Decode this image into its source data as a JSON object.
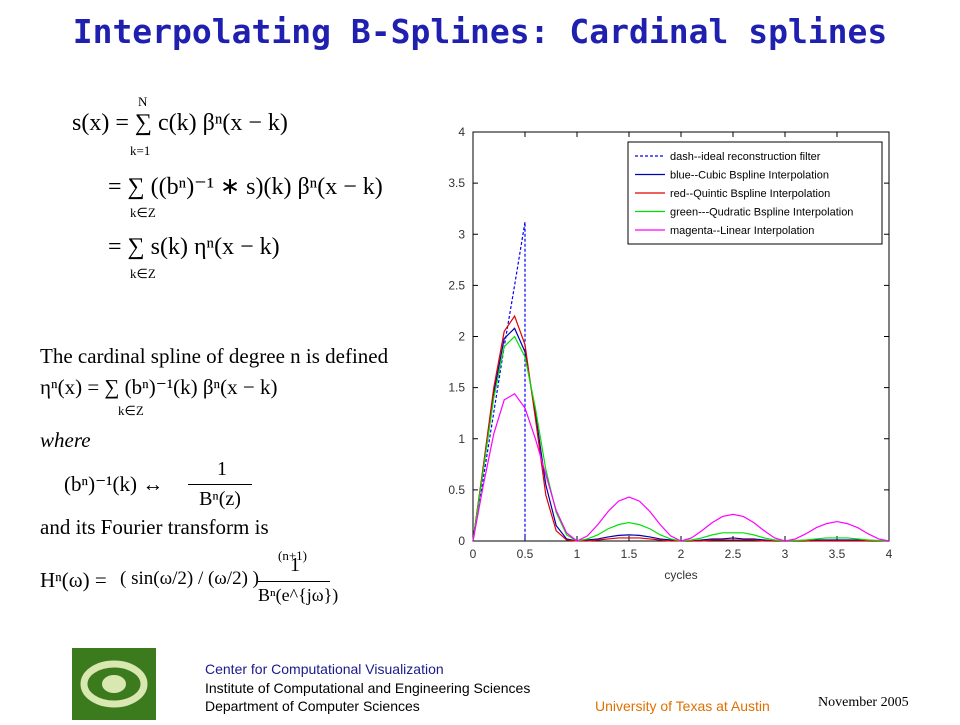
{
  "title": "Interpolating B-Splines: Cardinal splines",
  "equations": {
    "eq1": {
      "main": "s(x) = ∑ c(k) βⁿ(x − k)",
      "upper": "N",
      "lower": "k=1"
    },
    "eq2": {
      "main": "= ∑ ((bⁿ)⁻¹ ∗ s)(k) βⁿ(x − k)",
      "lower": "k∈Z"
    },
    "eq3": {
      "main": "= ∑ s(k) ηⁿ(x − k)",
      "lower": "k∈Z"
    },
    "definition": "The cardinal spline of degree n is defined",
    "eq4": {
      "main": "ηⁿ(x) = ∑ (bⁿ)⁻¹(k) βⁿ(x − k)",
      "lower": "k∈Z"
    },
    "where": "where",
    "eq5": {
      "left": "(bⁿ)⁻¹(k) ↔",
      "numerator": "1",
      "denominator": "Bⁿ(z)"
    },
    "fourier": "and its Fourier transform is",
    "eq6": {
      "left": "Hⁿ(ω) =",
      "paren": "( sin(ω/2) / (ω/2) )",
      "power": "(n+1)",
      "numerator": "1",
      "denominator": "Bⁿ(e^{jω})"
    }
  },
  "chart_data": {
    "type": "line",
    "xlabel": "cycles",
    "xlim": [
      0,
      4
    ],
    "ylim": [
      0,
      4
    ],
    "xticks": [
      0,
      0.5,
      1,
      1.5,
      2,
      2.5,
      3,
      3.5,
      4
    ],
    "yticks": [
      0,
      0.5,
      1,
      1.5,
      2,
      2.5,
      3,
      3.5,
      4
    ],
    "legend": "upper right",
    "x": [
      0,
      0.1,
      0.2,
      0.3,
      0.4,
      0.5,
      0.6,
      0.7,
      0.8,
      0.9,
      1,
      1.1,
      1.2,
      1.3,
      1.4,
      1.5,
      1.6,
      1.7,
      1.8,
      1.9,
      2,
      2.1,
      2.2,
      2.3,
      2.4,
      2.5,
      2.6,
      2.7,
      2.8,
      2.9,
      3,
      3.1,
      3.2,
      3.3,
      3.4,
      3.5,
      3.6,
      3.7,
      3.8,
      3.9,
      4
    ],
    "series": [
      {
        "name": "dash--ideal reconstruction filter",
        "color": "#0000ff",
        "dashed": true,
        "x": [
          0,
          0.1,
          0.2,
          0.3,
          0.4,
          0.5,
          0.5
        ],
        "values": [
          0,
          0.62,
          1.26,
          1.9,
          2.5,
          3.12,
          0
        ]
      },
      {
        "name": "blue--Cubic Bspline Interpolation",
        "color": "#0000b0",
        "values": [
          0,
          0.72,
          1.45,
          1.98,
          2.08,
          1.85,
          1.25,
          0.55,
          0.15,
          0.02,
          0,
          0.01,
          0.02,
          0.04,
          0.055,
          0.06,
          0.055,
          0.04,
          0.02,
          0.01,
          0,
          0,
          0.01,
          0.02,
          0.02,
          0.03,
          0.02,
          0.02,
          0.01,
          0,
          0,
          0,
          0,
          0.01,
          0.01,
          0.01,
          0.01,
          0.01,
          0,
          0,
          0
        ]
      },
      {
        "name": "red--Quintic Bspline Interpolation",
        "color": "#e00000",
        "values": [
          0,
          0.74,
          1.5,
          2.05,
          2.2,
          1.92,
          1.2,
          0.45,
          0.1,
          0.01,
          0,
          0,
          0.01,
          0.02,
          0.03,
          0.03,
          0.03,
          0.02,
          0.01,
          0,
          0,
          0,
          0,
          0.01,
          0.01,
          0.01,
          0.01,
          0.01,
          0,
          0,
          0,
          0,
          0,
          0,
          0,
          0,
          0,
          0,
          0,
          0,
          0
        ]
      },
      {
        "name": "green---Qudratic Bspline Interpolation",
        "color": "#00e000",
        "values": [
          0,
          0.7,
          1.4,
          1.9,
          2.0,
          1.8,
          1.3,
          0.7,
          0.28,
          0.06,
          0,
          0.02,
          0.06,
          0.12,
          0.16,
          0.18,
          0.16,
          0.12,
          0.06,
          0.02,
          0,
          0.01,
          0.03,
          0.06,
          0.08,
          0.08,
          0.08,
          0.06,
          0.03,
          0.01,
          0,
          0.005,
          0.01,
          0.02,
          0.03,
          0.03,
          0.03,
          0.02,
          0.01,
          0.005,
          0
        ]
      },
      {
        "name": "magenta--Linear Interpolation",
        "color": "#ff00ff",
        "values": [
          0,
          0.55,
          1.05,
          1.38,
          1.44,
          1.3,
          1.0,
          0.65,
          0.3,
          0.08,
          0,
          0.05,
          0.16,
          0.29,
          0.39,
          0.43,
          0.39,
          0.29,
          0.16,
          0.05,
          0,
          0.03,
          0.1,
          0.18,
          0.24,
          0.26,
          0.24,
          0.18,
          0.1,
          0.03,
          0,
          0.02,
          0.07,
          0.13,
          0.17,
          0.19,
          0.17,
          0.13,
          0.07,
          0.02,
          0
        ]
      }
    ]
  },
  "footer": {
    "center_name": "Center for Computational Visualization",
    "institute": "Institute of Computational and Engineering Sciences",
    "department": "Department of Computer Sciences",
    "university": "University of Texas at Austin",
    "date": "November  2005"
  }
}
